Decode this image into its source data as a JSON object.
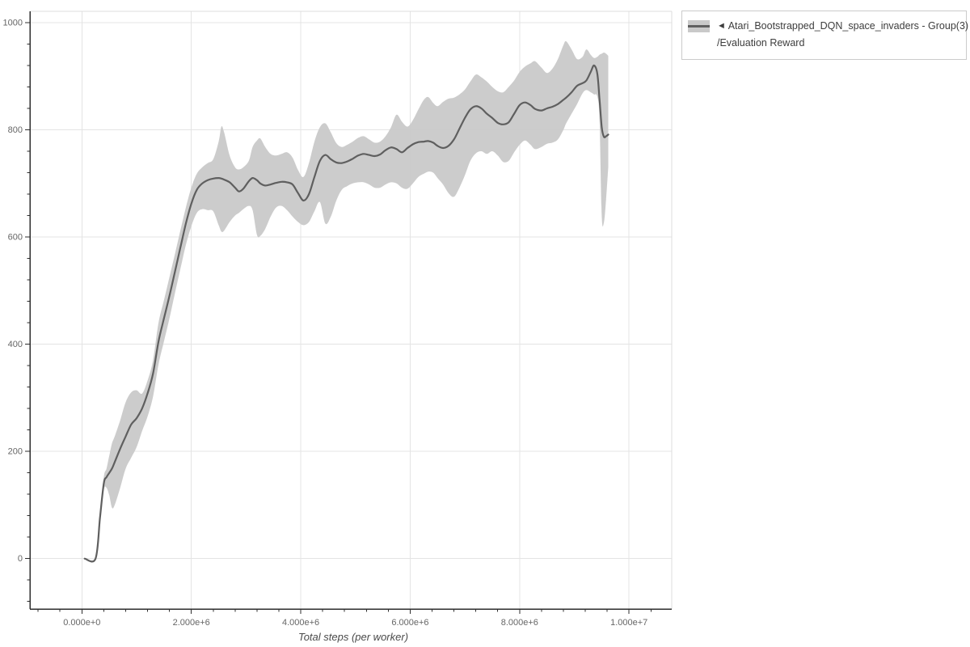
{
  "legend": {
    "collapse_icon": "◄",
    "series_name": "Atari_Bootstrapped_DQN_space_invaders - Group(3)",
    "metric_name": "/Evaluation Reward"
  },
  "colors": {
    "band": "#c9c9c9",
    "mean_line": "#5f5f5f",
    "grid": "#e4e4e4",
    "axis": "#2e2e2e",
    "plot_border_light": "#dcdcdc",
    "tick_label": "#666666",
    "axis_title": "#4a4a4a",
    "legend_border": "#cbcbcb",
    "legend_text": "#3d3d3d"
  },
  "chart_data": {
    "type": "line",
    "title": "",
    "xlabel": "Total steps (per worker)",
    "ylabel": "",
    "legend_position": "top-right",
    "grid": "major",
    "xlim": [
      -950000,
      10780000
    ],
    "ylim": [
      -94,
      1021
    ],
    "x_ticks_major": [
      0,
      2000000,
      4000000,
      6000000,
      8000000,
      10000000
    ],
    "x_tick_labels": [
      "0.000e+0",
      "2.000e+6",
      "4.000e+6",
      "6.000e+6",
      "8.000e+6",
      "1.000e+7"
    ],
    "x_minor_step": 400000,
    "y_ticks_major": [
      0,
      200,
      400,
      600,
      800,
      1000
    ],
    "y_tick_labels": [
      "0",
      "200",
      "400",
      "600",
      "800",
      "1000"
    ],
    "y_minor_step": 40,
    "x_scale": 1000000,
    "series": [
      {
        "name": "Atari_Bootstrapped_DQN_space_invaders - Group(3)/Evaluation Reward",
        "style": "mean-with-band",
        "x_millions": [
          0.05,
          0.25,
          0.33,
          0.4,
          0.45,
          0.5,
          0.55,
          0.6,
          0.7,
          0.8,
          0.9,
          1.0,
          1.1,
          1.2,
          1.3,
          1.4,
          1.5,
          1.6,
          1.7,
          1.8,
          1.9,
          2.0,
          2.1,
          2.2,
          2.3,
          2.4,
          2.5,
          2.55,
          2.6,
          2.7,
          2.8,
          2.87,
          2.95,
          3.05,
          3.12,
          3.2,
          3.26,
          3.35,
          3.45,
          3.55,
          3.65,
          3.75,
          3.85,
          3.95,
          4.05,
          4.15,
          4.25,
          4.35,
          4.45,
          4.55,
          4.65,
          4.75,
          4.85,
          4.95,
          5.05,
          5.15,
          5.25,
          5.35,
          5.45,
          5.55,
          5.65,
          5.75,
          5.85,
          5.95,
          6.05,
          6.15,
          6.25,
          6.33,
          6.42,
          6.5,
          6.6,
          6.7,
          6.8,
          6.9,
          7.0,
          7.1,
          7.2,
          7.3,
          7.4,
          7.5,
          7.6,
          7.7,
          7.8,
          7.9,
          8.0,
          8.1,
          8.2,
          8.28,
          8.4,
          8.5,
          8.6,
          8.7,
          8.8,
          8.85,
          8.95,
          9.05,
          9.15,
          9.22,
          9.3,
          9.36,
          9.42,
          9.46,
          9.5,
          9.54,
          9.58,
          9.62
        ],
        "mean": [
          0,
          0,
          75,
          140,
          152,
          160,
          168,
          180,
          205,
          228,
          250,
          262,
          280,
          308,
          345,
          405,
          448,
          490,
          535,
          580,
          625,
          662,
          688,
          700,
          706,
          709,
          710,
          709,
          707,
          702,
          692,
          685,
          690,
          704,
          710,
          706,
          700,
          696,
          698,
          701,
          703,
          702,
          698,
          682,
          668,
          680,
          712,
          742,
          753,
          745,
          739,
          738,
          741,
          746,
          752,
          755,
          753,
          751,
          754,
          762,
          767,
          764,
          758,
          766,
          773,
          777,
          778,
          779,
          776,
          770,
          766,
          770,
          782,
          802,
          822,
          838,
          844,
          840,
          830,
          822,
          813,
          810,
          814,
          830,
          846,
          851,
          846,
          839,
          836,
          840,
          843,
          848,
          856,
          860,
          870,
          882,
          887,
          892,
          908,
          920,
          905,
          858,
          805,
          787,
          788,
          791
        ],
        "lo": [
          0,
          0,
          68,
          128,
          132,
          118,
          95,
          100,
          132,
          168,
          188,
          208,
          238,
          265,
          302,
          362,
          405,
          448,
          495,
          540,
          585,
          620,
          645,
          652,
          650,
          648,
          622,
          610,
          612,
          628,
          640,
          645,
          652,
          658,
          650,
          604,
          602,
          615,
          638,
          655,
          658,
          650,
          638,
          628,
          622,
          628,
          648,
          665,
          625,
          638,
          668,
          688,
          695,
          700,
          702,
          702,
          698,
          692,
          692,
          698,
          702,
          700,
          692,
          690,
          700,
          712,
          718,
          722,
          720,
          710,
          698,
          682,
          675,
          692,
          715,
          742,
          756,
          760,
          755,
          760,
          752,
          740,
          742,
          758,
          772,
          780,
          772,
          764,
          768,
          774,
          776,
          782,
          800,
          812,
          830,
          848,
          868,
          874,
          870,
          866,
          862,
          820,
          640,
          627,
          670,
          730
        ],
        "hi": [
          0,
          0,
          82,
          152,
          168,
          192,
          215,
          228,
          258,
          292,
          310,
          314,
          308,
          332,
          370,
          440,
          482,
          525,
          568,
          612,
          655,
          692,
          718,
          730,
          738,
          745,
          778,
          806,
          795,
          752,
          730,
          726,
          730,
          742,
          768,
          780,
          784,
          768,
          755,
          752,
          755,
          758,
          748,
          725,
          712,
          738,
          778,
          805,
          812,
          795,
          775,
          768,
          772,
          778,
          785,
          788,
          782,
          776,
          778,
          788,
          805,
          828,
          815,
          806,
          818,
          838,
          856,
          861,
          850,
          844,
          852,
          858,
          860,
          866,
          875,
          890,
          903,
          898,
          890,
          880,
          872,
          870,
          880,
          892,
          908,
          918,
          924,
          928,
          916,
          906,
          914,
          932,
          958,
          965,
          950,
          932,
          936,
          950,
          940,
          934,
          936,
          940,
          942,
          944,
          942,
          938
        ]
      }
    ]
  }
}
